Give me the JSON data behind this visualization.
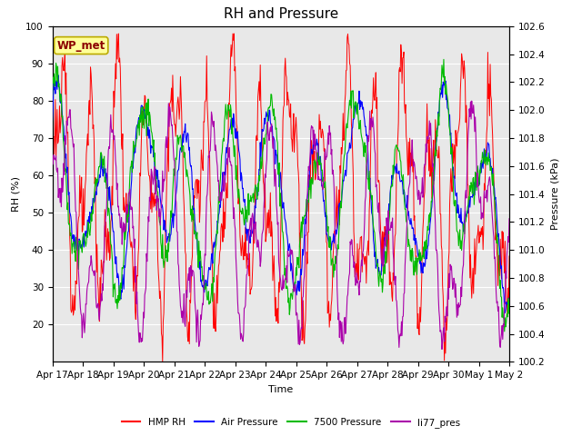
{
  "title": "RH and Pressure",
  "xlabel": "Time",
  "ylabel_left": "RH (%)",
  "ylabel_right": "Pressure (kPa)",
  "station_label": "WP_met",
  "ylim_left": [
    10,
    100
  ],
  "ylim_right": [
    100.2,
    102.6
  ],
  "yticks_left": [
    20,
    30,
    40,
    50,
    60,
    70,
    80,
    90,
    100
  ],
  "yticks_right": [
    100.2,
    100.4,
    100.6,
    100.8,
    101.0,
    101.2,
    101.4,
    101.6,
    101.8,
    102.0,
    102.2,
    102.4,
    102.6
  ],
  "xtick_labels": [
    "Apr 17",
    "Apr 18",
    "Apr 19",
    "Apr 20",
    "Apr 21",
    "Apr 22",
    "Apr 23",
    "Apr 24",
    "Apr 25",
    "Apr 26",
    "Apr 27",
    "Apr 28",
    "Apr 29",
    "Apr 30",
    "May 1",
    "May 2"
  ],
  "colors": {
    "hmp_rh": "#FF0000",
    "air_pressure": "#0000FF",
    "pressure_7500": "#00BB00",
    "li77_pres": "#AA00AA"
  },
  "legend_labels": [
    "HMP RH",
    "Air Pressure",
    "7500 Pressure",
    "li77_pres"
  ],
  "plot_bg": "#E8E8E8",
  "title_fontsize": 11,
  "axis_fontsize": 8,
  "tick_fontsize": 7.5
}
